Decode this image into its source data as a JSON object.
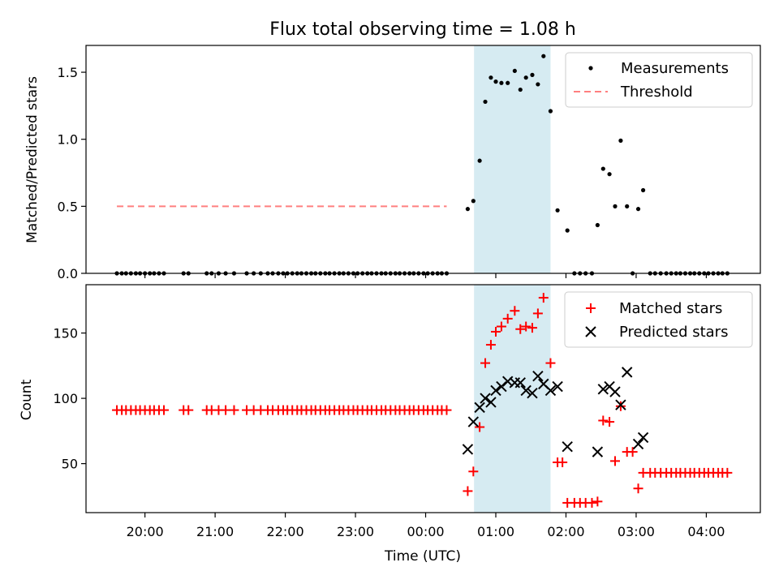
{
  "chart_data": {
    "type": "scatter",
    "title": "Flux total observing time = 1.08 h",
    "xlabel": "Time (UTC)",
    "x_unit": "hours since 20:00 UTC",
    "x_ticks": [
      {
        "value": 0,
        "label": "20:00"
      },
      {
        "value": 1,
        "label": "21:00"
      },
      {
        "value": 2,
        "label": "22:00"
      },
      {
        "value": 3,
        "label": "23:00"
      },
      {
        "value": 4,
        "label": "00:00"
      },
      {
        "value": 5,
        "label": "01:00"
      },
      {
        "value": 6,
        "label": "02:00"
      },
      {
        "value": 7,
        "label": "03:00"
      },
      {
        "value": 8,
        "label": "04:00"
      }
    ],
    "xlim": [
      -0.84,
      8.77
    ],
    "shaded_region": {
      "x0": 4.69,
      "x1": 5.78,
      "color": "#add8e6"
    },
    "top": {
      "ylabel": "Matched/Predicted stars",
      "ylim": [
        0,
        1.7
      ],
      "y_ticks": [
        {
          "value": 0,
          "label": "0.0"
        },
        {
          "value": 0.5,
          "label": "0.5"
        },
        {
          "value": 1.0,
          "label": "1.0"
        },
        {
          "value": 1.5,
          "label": "1.5"
        }
      ],
      "threshold": {
        "name": "Threshold",
        "value": 0.5,
        "x0": -0.4,
        "x1": 4.3,
        "color": "#ff7f7f"
      },
      "measurements": {
        "name": "Measurements",
        "color": "#000000",
        "points": [
          [
            -0.4,
            0
          ],
          [
            -0.33,
            0
          ],
          [
            -0.27,
            0
          ],
          [
            -0.2,
            0
          ],
          [
            -0.13,
            0
          ],
          [
            -0.07,
            0
          ],
          [
            0.0,
            0
          ],
          [
            0.07,
            0
          ],
          [
            0.13,
            0
          ],
          [
            0.2,
            0
          ],
          [
            0.27,
            0
          ],
          [
            0.55,
            0
          ],
          [
            0.62,
            0
          ],
          [
            0.88,
            0
          ],
          [
            0.95,
            0
          ],
          [
            1.05,
            0
          ],
          [
            1.15,
            0
          ],
          [
            1.27,
            0
          ],
          [
            1.45,
            0
          ],
          [
            1.55,
            0
          ],
          [
            1.65,
            0
          ],
          [
            1.75,
            0
          ],
          [
            1.82,
            0
          ],
          [
            1.9,
            0
          ],
          [
            1.97,
            0
          ],
          [
            2.03,
            0
          ],
          [
            2.1,
            0
          ],
          [
            2.17,
            0
          ],
          [
            2.23,
            0
          ],
          [
            2.3,
            0
          ],
          [
            2.37,
            0
          ],
          [
            2.43,
            0
          ],
          [
            2.5,
            0
          ],
          [
            2.57,
            0
          ],
          [
            2.63,
            0
          ],
          [
            2.7,
            0
          ],
          [
            2.77,
            0
          ],
          [
            2.83,
            0
          ],
          [
            2.9,
            0
          ],
          [
            2.97,
            0
          ],
          [
            3.03,
            0
          ],
          [
            3.1,
            0
          ],
          [
            3.17,
            0
          ],
          [
            3.23,
            0
          ],
          [
            3.3,
            0
          ],
          [
            3.37,
            0
          ],
          [
            3.43,
            0
          ],
          [
            3.5,
            0
          ],
          [
            3.57,
            0
          ],
          [
            3.63,
            0
          ],
          [
            3.7,
            0
          ],
          [
            3.77,
            0
          ],
          [
            3.83,
            0
          ],
          [
            3.9,
            0
          ],
          [
            3.97,
            0
          ],
          [
            4.03,
            0
          ],
          [
            4.1,
            0
          ],
          [
            4.17,
            0
          ],
          [
            4.23,
            0
          ],
          [
            4.3,
            0
          ],
          [
            4.6,
            0.48
          ],
          [
            4.68,
            0.54
          ],
          [
            4.77,
            0.84
          ],
          [
            4.85,
            1.28
          ],
          [
            4.93,
            1.46
          ],
          [
            5.0,
            1.43
          ],
          [
            5.08,
            1.42
          ],
          [
            5.17,
            1.42
          ],
          [
            5.27,
            1.51
          ],
          [
            5.35,
            1.37
          ],
          [
            5.43,
            1.46
          ],
          [
            5.52,
            1.48
          ],
          [
            5.6,
            1.41
          ],
          [
            5.68,
            1.62
          ],
          [
            5.78,
            1.21
          ],
          [
            5.88,
            0.47
          ],
          [
            6.02,
            0.32
          ],
          [
            6.12,
            0
          ],
          [
            6.2,
            0
          ],
          [
            6.28,
            0
          ],
          [
            6.37,
            0
          ],
          [
            6.45,
            0.36
          ],
          [
            6.53,
            0.78
          ],
          [
            6.62,
            0.74
          ],
          [
            6.7,
            0.5
          ],
          [
            6.78,
            0.99
          ],
          [
            6.87,
            0.5
          ],
          [
            6.95,
            0
          ],
          [
            7.03,
            0.48
          ],
          [
            7.1,
            0.62
          ],
          [
            7.2,
            0
          ],
          [
            7.27,
            0
          ],
          [
            7.35,
            0
          ],
          [
            7.43,
            0
          ],
          [
            7.5,
            0
          ],
          [
            7.57,
            0
          ],
          [
            7.63,
            0
          ],
          [
            7.7,
            0
          ],
          [
            7.77,
            0
          ],
          [
            7.83,
            0
          ],
          [
            7.9,
            0
          ],
          [
            7.97,
            0
          ],
          [
            8.03,
            0
          ],
          [
            8.1,
            0
          ],
          [
            8.17,
            0
          ],
          [
            8.23,
            0
          ],
          [
            8.3,
            0
          ]
        ]
      }
    },
    "bottom": {
      "ylabel": "Count",
      "ylim": [
        12.5,
        187
      ],
      "y_ticks": [
        {
          "value": 50,
          "label": "50"
        },
        {
          "value": 100,
          "label": "100"
        },
        {
          "value": 150,
          "label": "150"
        }
      ],
      "matched": {
        "name": "Matched stars",
        "color": "#ff0000",
        "points": [
          [
            -0.4,
            91
          ],
          [
            -0.33,
            91
          ],
          [
            -0.27,
            91
          ],
          [
            -0.2,
            91
          ],
          [
            -0.13,
            91
          ],
          [
            -0.07,
            91
          ],
          [
            0.0,
            91
          ],
          [
            0.07,
            91
          ],
          [
            0.13,
            91
          ],
          [
            0.2,
            91
          ],
          [
            0.27,
            91
          ],
          [
            0.55,
            91
          ],
          [
            0.62,
            91
          ],
          [
            0.88,
            91
          ],
          [
            0.95,
            91
          ],
          [
            1.05,
            91
          ],
          [
            1.15,
            91
          ],
          [
            1.27,
            91
          ],
          [
            1.45,
            91
          ],
          [
            1.55,
            91
          ],
          [
            1.65,
            91
          ],
          [
            1.75,
            91
          ],
          [
            1.82,
            91
          ],
          [
            1.9,
            91
          ],
          [
            1.97,
            91
          ],
          [
            2.03,
            91
          ],
          [
            2.1,
            91
          ],
          [
            2.17,
            91
          ],
          [
            2.23,
            91
          ],
          [
            2.3,
            91
          ],
          [
            2.37,
            91
          ],
          [
            2.43,
            91
          ],
          [
            2.5,
            91
          ],
          [
            2.57,
            91
          ],
          [
            2.63,
            91
          ],
          [
            2.7,
            91
          ],
          [
            2.77,
            91
          ],
          [
            2.83,
            91
          ],
          [
            2.9,
            91
          ],
          [
            2.97,
            91
          ],
          [
            3.03,
            91
          ],
          [
            3.1,
            91
          ],
          [
            3.17,
            91
          ],
          [
            3.23,
            91
          ],
          [
            3.3,
            91
          ],
          [
            3.37,
            91
          ],
          [
            3.43,
            91
          ],
          [
            3.5,
            91
          ],
          [
            3.57,
            91
          ],
          [
            3.63,
            91
          ],
          [
            3.7,
            91
          ],
          [
            3.77,
            91
          ],
          [
            3.83,
            91
          ],
          [
            3.9,
            91
          ],
          [
            3.97,
            91
          ],
          [
            4.03,
            91
          ],
          [
            4.1,
            91
          ],
          [
            4.17,
            91
          ],
          [
            4.23,
            91
          ],
          [
            4.3,
            91
          ],
          [
            4.6,
            29
          ],
          [
            4.68,
            44
          ],
          [
            4.77,
            78
          ],
          [
            4.85,
            127
          ],
          [
            4.93,
            141
          ],
          [
            5.0,
            151
          ],
          [
            5.08,
            155
          ],
          [
            5.17,
            161
          ],
          [
            5.27,
            167
          ],
          [
            5.35,
            153
          ],
          [
            5.43,
            155
          ],
          [
            5.52,
            154
          ],
          [
            5.6,
            165
          ],
          [
            5.68,
            177
          ],
          [
            5.78,
            127
          ],
          [
            5.88,
            51
          ],
          [
            5.95,
            51
          ],
          [
            6.02,
            20
          ],
          [
            6.12,
            20
          ],
          [
            6.2,
            20
          ],
          [
            6.28,
            20
          ],
          [
            6.37,
            20
          ],
          [
            6.45,
            21
          ],
          [
            6.53,
            83
          ],
          [
            6.62,
            82
          ],
          [
            6.7,
            52
          ],
          [
            6.78,
            94
          ],
          [
            6.87,
            59
          ],
          [
            6.95,
            59
          ],
          [
            7.03,
            31
          ],
          [
            7.1,
            43
          ],
          [
            7.2,
            43
          ],
          [
            7.27,
            43
          ],
          [
            7.35,
            43
          ],
          [
            7.43,
            43
          ],
          [
            7.5,
            43
          ],
          [
            7.57,
            43
          ],
          [
            7.63,
            43
          ],
          [
            7.7,
            43
          ],
          [
            7.77,
            43
          ],
          [
            7.83,
            43
          ],
          [
            7.9,
            43
          ],
          [
            7.97,
            43
          ],
          [
            8.03,
            43
          ],
          [
            8.1,
            43
          ],
          [
            8.17,
            43
          ],
          [
            8.23,
            43
          ],
          [
            8.3,
            43
          ]
        ]
      },
      "predicted": {
        "name": "Predicted stars",
        "color": "#000000",
        "points": [
          [
            4.6,
            61
          ],
          [
            4.68,
            82
          ],
          [
            4.77,
            93
          ],
          [
            4.85,
            100
          ],
          [
            4.93,
            97
          ],
          [
            5.0,
            106
          ],
          [
            5.08,
            109
          ],
          [
            5.17,
            113
          ],
          [
            5.27,
            112
          ],
          [
            5.35,
            112
          ],
          [
            5.43,
            106
          ],
          [
            5.52,
            104
          ],
          [
            5.6,
            117
          ],
          [
            5.68,
            111
          ],
          [
            5.78,
            106
          ],
          [
            5.88,
            109
          ],
          [
            6.02,
            63
          ],
          [
            6.45,
            59
          ],
          [
            6.53,
            107
          ],
          [
            6.62,
            109
          ],
          [
            6.7,
            105
          ],
          [
            6.78,
            95
          ],
          [
            6.87,
            120
          ],
          [
            7.03,
            65
          ],
          [
            7.1,
            70
          ]
        ]
      }
    }
  }
}
